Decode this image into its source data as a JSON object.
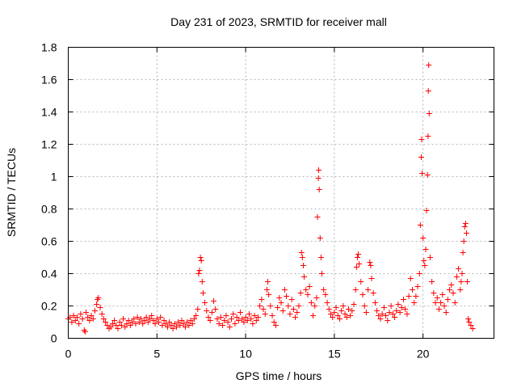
{
  "chart_data": {
    "type": "scatter",
    "title": "Day 231 of 2023, SRMTID for receiver mall",
    "xlabel": "GPS time / hours",
    "ylabel": "SRMTID / TECUs",
    "xlim": [
      0,
      24
    ],
    "ylim": [
      0,
      1.8
    ],
    "xticks": [
      0,
      5,
      10,
      15,
      20
    ],
    "xtick_labels": [
      "0",
      "5",
      "10",
      "15",
      "20"
    ],
    "yticks": [
      0,
      0.2,
      0.4,
      0.6,
      0.8,
      1,
      1.2,
      1.4,
      1.6,
      1.8
    ],
    "ytick_labels": [
      "0",
      "0.2",
      "0.4",
      "0.6",
      "0.8",
      "1",
      "1.2",
      "1.4",
      "1.6",
      "1.8"
    ],
    "grid": true,
    "marker": "plus",
    "color": "#ff0000",
    "series": [
      {
        "name": "SRMTID",
        "points": [
          [
            0.0,
            0.12
          ],
          [
            0.1,
            0.13
          ],
          [
            0.2,
            0.1
          ],
          [
            0.3,
            0.14
          ],
          [
            0.4,
            0.11
          ],
          [
            0.5,
            0.13
          ],
          [
            0.6,
            0.09
          ],
          [
            0.7,
            0.15
          ],
          [
            0.8,
            0.12
          ],
          [
            0.9,
            0.05
          ],
          [
            0.95,
            0.04
          ],
          [
            1.0,
            0.16
          ],
          [
            1.1,
            0.13
          ],
          [
            1.2,
            0.11
          ],
          [
            1.3,
            0.14
          ],
          [
            1.4,
            0.12
          ],
          [
            1.5,
            0.17
          ],
          [
            1.6,
            0.21
          ],
          [
            1.65,
            0.24
          ],
          [
            1.7,
            0.25
          ],
          [
            1.8,
            0.19
          ],
          [
            1.9,
            0.15
          ],
          [
            2.0,
            0.12
          ],
          [
            2.1,
            0.1
          ],
          [
            2.2,
            0.08
          ],
          [
            2.3,
            0.06
          ],
          [
            2.4,
            0.07
          ],
          [
            2.5,
            0.09
          ],
          [
            2.6,
            0.11
          ],
          [
            2.7,
            0.08
          ],
          [
            2.8,
            0.06
          ],
          [
            2.9,
            0.1
          ],
          [
            3.0,
            0.08
          ],
          [
            3.1,
            0.12
          ],
          [
            3.2,
            0.07
          ],
          [
            3.3,
            0.09
          ],
          [
            3.4,
            0.11
          ],
          [
            3.5,
            0.08
          ],
          [
            3.6,
            0.1
          ],
          [
            3.7,
            0.12
          ],
          [
            3.8,
            0.09
          ],
          [
            3.9,
            0.13
          ],
          [
            4.0,
            0.1
          ],
          [
            4.1,
            0.12
          ],
          [
            4.2,
            0.09
          ],
          [
            4.3,
            0.11
          ],
          [
            4.4,
            0.13
          ],
          [
            4.5,
            0.1
          ],
          [
            4.6,
            0.12
          ],
          [
            4.7,
            0.14
          ],
          [
            4.8,
            0.11
          ],
          [
            4.9,
            0.09
          ],
          [
            5.0,
            0.12
          ],
          [
            5.1,
            0.1
          ],
          [
            5.2,
            0.13
          ],
          [
            5.3,
            0.08
          ],
          [
            5.4,
            0.11
          ],
          [
            5.5,
            0.09
          ],
          [
            5.6,
            0.07
          ],
          [
            5.7,
            0.1
          ],
          [
            5.8,
            0.08
          ],
          [
            5.9,
            0.06
          ],
          [
            6.0,
            0.09
          ],
          [
            6.1,
            0.07
          ],
          [
            6.2,
            0.1
          ],
          [
            6.3,
            0.08
          ],
          [
            6.4,
            0.11
          ],
          [
            6.5,
            0.09
          ],
          [
            6.6,
            0.07
          ],
          [
            6.7,
            0.1
          ],
          [
            6.8,
            0.08
          ],
          [
            6.9,
            0.11
          ],
          [
            7.0,
            0.09
          ],
          [
            7.1,
            0.12
          ],
          [
            7.2,
            0.14
          ],
          [
            7.3,
            0.18
          ],
          [
            7.35,
            0.4
          ],
          [
            7.4,
            0.42
          ],
          [
            7.45,
            0.5
          ],
          [
            7.5,
            0.48
          ],
          [
            7.55,
            0.35
          ],
          [
            7.6,
            0.28
          ],
          [
            7.7,
            0.22
          ],
          [
            7.8,
            0.17
          ],
          [
            7.9,
            0.13
          ],
          [
            8.0,
            0.11
          ],
          [
            8.1,
            0.16
          ],
          [
            8.2,
            0.23
          ],
          [
            8.3,
            0.18
          ],
          [
            8.4,
            0.12
          ],
          [
            8.5,
            0.09
          ],
          [
            8.6,
            0.13
          ],
          [
            8.7,
            0.08
          ],
          [
            8.8,
            0.11
          ],
          [
            8.9,
            0.14
          ],
          [
            9.0,
            0.1
          ],
          [
            9.1,
            0.07
          ],
          [
            9.2,
            0.12
          ],
          [
            9.3,
            0.15
          ],
          [
            9.4,
            0.09
          ],
          [
            9.5,
            0.13
          ],
          [
            9.6,
            0.11
          ],
          [
            9.7,
            0.16
          ],
          [
            9.8,
            0.12
          ],
          [
            9.9,
            0.1
          ],
          [
            10.0,
            0.13
          ],
          [
            10.1,
            0.11
          ],
          [
            10.2,
            0.15
          ],
          [
            10.3,
            0.12
          ],
          [
            10.4,
            0.09
          ],
          [
            10.5,
            0.14
          ],
          [
            10.6,
            0.11
          ],
          [
            10.7,
            0.13
          ],
          [
            10.8,
            0.2
          ],
          [
            10.9,
            0.24
          ],
          [
            11.0,
            0.18
          ],
          [
            11.1,
            0.15
          ],
          [
            11.2,
            0.3
          ],
          [
            11.25,
            0.35
          ],
          [
            11.3,
            0.27
          ],
          [
            11.4,
            0.2
          ],
          [
            11.5,
            0.14
          ],
          [
            11.6,
            0.1
          ],
          [
            11.7,
            0.08
          ],
          [
            11.8,
            0.19
          ],
          [
            11.9,
            0.25
          ],
          [
            12.0,
            0.22
          ],
          [
            12.1,
            0.17
          ],
          [
            12.2,
            0.3
          ],
          [
            12.3,
            0.26
          ],
          [
            12.4,
            0.2
          ],
          [
            12.5,
            0.15
          ],
          [
            12.6,
            0.24
          ],
          [
            12.7,
            0.18
          ],
          [
            12.8,
            0.13
          ],
          [
            12.9,
            0.16
          ],
          [
            13.0,
            0.2
          ],
          [
            13.1,
            0.28
          ],
          [
            13.15,
            0.53
          ],
          [
            13.2,
            0.5
          ],
          [
            13.25,
            0.45
          ],
          [
            13.3,
            0.38
          ],
          [
            13.4,
            0.3
          ],
          [
            13.5,
            0.27
          ],
          [
            13.6,
            0.32
          ],
          [
            13.7,
            0.22
          ],
          [
            13.8,
            0.14
          ],
          [
            13.9,
            0.2
          ],
          [
            14.0,
            0.25
          ],
          [
            14.05,
            0.75
          ],
          [
            14.1,
            0.99
          ],
          [
            14.12,
            1.04
          ],
          [
            14.15,
            0.92
          ],
          [
            14.2,
            0.62
          ],
          [
            14.25,
            0.5
          ],
          [
            14.3,
            0.4
          ],
          [
            14.4,
            0.3
          ],
          [
            14.5,
            0.27
          ],
          [
            14.6,
            0.22
          ],
          [
            14.7,
            0.18
          ],
          [
            14.8,
            0.15
          ],
          [
            14.9,
            0.13
          ],
          [
            15.0,
            0.16
          ],
          [
            15.1,
            0.19
          ],
          [
            15.2,
            0.14
          ],
          [
            15.3,
            0.12
          ],
          [
            15.4,
            0.17
          ],
          [
            15.5,
            0.2
          ],
          [
            15.6,
            0.15
          ],
          [
            15.7,
            0.13
          ],
          [
            15.8,
            0.18
          ],
          [
            15.9,
            0.14
          ],
          [
            16.0,
            0.17
          ],
          [
            16.1,
            0.21
          ],
          [
            16.2,
            0.3
          ],
          [
            16.25,
            0.44
          ],
          [
            16.3,
            0.5
          ],
          [
            16.35,
            0.52
          ],
          [
            16.4,
            0.46
          ],
          [
            16.5,
            0.35
          ],
          [
            16.6,
            0.27
          ],
          [
            16.7,
            0.2
          ],
          [
            16.8,
            0.16
          ],
          [
            16.9,
            0.3
          ],
          [
            17.0,
            0.47
          ],
          [
            17.05,
            0.45
          ],
          [
            17.1,
            0.37
          ],
          [
            17.2,
            0.28
          ],
          [
            17.3,
            0.22
          ],
          [
            17.4,
            0.17
          ],
          [
            17.5,
            0.14
          ],
          [
            17.6,
            0.12
          ],
          [
            17.7,
            0.15
          ],
          [
            17.8,
            0.19
          ],
          [
            17.9,
            0.14
          ],
          [
            18.0,
            0.11
          ],
          [
            18.1,
            0.16
          ],
          [
            18.2,
            0.2
          ],
          [
            18.3,
            0.15
          ],
          [
            18.4,
            0.13
          ],
          [
            18.5,
            0.17
          ],
          [
            18.6,
            0.21
          ],
          [
            18.7,
            0.16
          ],
          [
            18.8,
            0.19
          ],
          [
            18.9,
            0.24
          ],
          [
            19.0,
            0.18
          ],
          [
            19.1,
            0.15
          ],
          [
            19.2,
            0.26
          ],
          [
            19.3,
            0.37
          ],
          [
            19.4,
            0.3
          ],
          [
            19.5,
            0.22
          ],
          [
            19.6,
            0.26
          ],
          [
            19.7,
            0.32
          ],
          [
            19.8,
            0.4
          ],
          [
            19.85,
            0.7
          ],
          [
            19.9,
            1.12
          ],
          [
            19.92,
            1.23
          ],
          [
            19.95,
            1.02
          ],
          [
            20.0,
            0.62
          ],
          [
            20.05,
            0.48
          ],
          [
            20.1,
            0.45
          ],
          [
            20.15,
            0.55
          ],
          [
            20.2,
            0.79
          ],
          [
            20.25,
            1.01
          ],
          [
            20.28,
            1.25
          ],
          [
            20.3,
            1.53
          ],
          [
            20.32,
            1.69
          ],
          [
            20.35,
            1.39
          ],
          [
            20.4,
            0.5
          ],
          [
            20.5,
            0.35
          ],
          [
            20.6,
            0.28
          ],
          [
            20.7,
            0.22
          ],
          [
            20.8,
            0.25
          ],
          [
            20.9,
            0.18
          ],
          [
            21.0,
            0.22
          ],
          [
            21.1,
            0.27
          ],
          [
            21.2,
            0.2
          ],
          [
            21.3,
            0.16
          ],
          [
            21.4,
            0.24
          ],
          [
            21.5,
            0.3
          ],
          [
            21.6,
            0.33
          ],
          [
            21.7,
            0.28
          ],
          [
            21.8,
            0.22
          ],
          [
            21.9,
            0.38
          ],
          [
            22.0,
            0.43
          ],
          [
            22.1,
            0.3
          ],
          [
            22.15,
            0.35
          ],
          [
            22.2,
            0.4
          ],
          [
            22.25,
            0.53
          ],
          [
            22.3,
            0.6
          ],
          [
            22.35,
            0.69
          ],
          [
            22.4,
            0.71
          ],
          [
            22.45,
            0.65
          ],
          [
            22.5,
            0.35
          ],
          [
            22.55,
            0.12
          ],
          [
            22.6,
            0.1
          ],
          [
            22.7,
            0.08
          ],
          [
            22.8,
            0.06
          ]
        ]
      }
    ]
  }
}
